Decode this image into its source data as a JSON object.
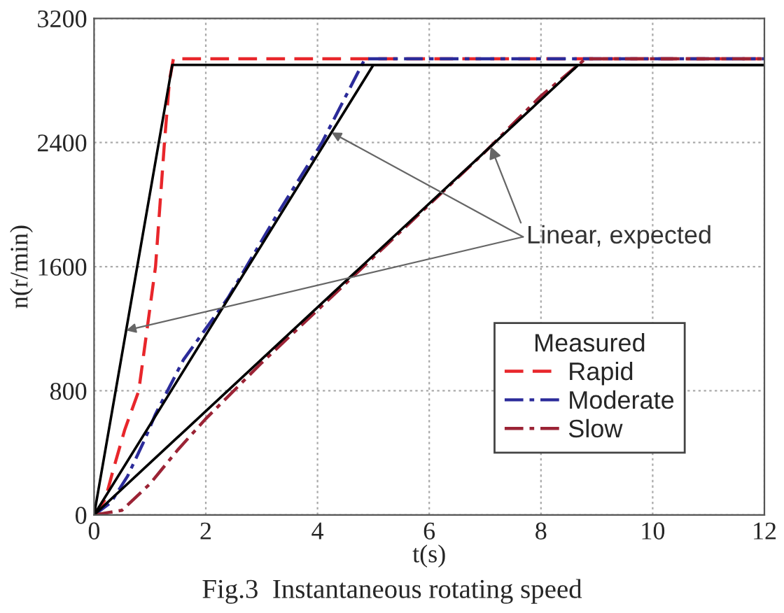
{
  "chart_data": {
    "type": "line",
    "xlabel": "t(s)",
    "ylabel": "n(r/min)",
    "legend_title": "Measured",
    "xlim": [
      0,
      12
    ],
    "ylim": [
      0,
      3200
    ],
    "xticks": [
      0,
      2,
      4,
      6,
      8,
      10,
      12
    ],
    "yticks": [
      0,
      800,
      1600,
      2400,
      3200
    ],
    "grid": true,
    "legend": "bottom right",
    "series": [
      {
        "name": "Rapid",
        "color": "#e8262b",
        "line_style": "dashed",
        "x": [
          0,
          0.2,
          0.35,
          0.55,
          0.8,
          0.95,
          1.1,
          1.26,
          1.35,
          1.42,
          12
        ],
        "values": [
          0,
          100,
          300,
          550,
          800,
          1200,
          1600,
          2400,
          2800,
          2940,
          2940
        ]
      },
      {
        "name": "Moderate",
        "color": "#2b2b9a",
        "line_style": "dashdot",
        "x": [
          0,
          0.3,
          0.6,
          0.9,
          1.1,
          1.6,
          2.4,
          3.3,
          4.08,
          4.85,
          12
        ],
        "values": [
          0,
          80,
          250,
          480,
          650,
          1000,
          1400,
          1950,
          2400,
          2940,
          2940
        ]
      },
      {
        "name": "Slow",
        "color": "#9b2335",
        "line_style": "dashdot",
        "x": [
          0,
          0.5,
          1,
          1.5,
          2,
          3,
          4,
          5,
          6,
          7,
          8,
          8.8,
          12
        ],
        "values": [
          0,
          30,
          200,
          420,
          620,
          980,
          1320,
          1660,
          2000,
          2340,
          2700,
          2940,
          2940
        ]
      },
      {
        "color": "#000000",
        "line_style": "solid",
        "x": [
          0,
          1.4,
          12
        ],
        "values": [
          0,
          2900,
          2900
        ]
      },
      {
        "color": "#000000",
        "line_style": "solid",
        "x": [
          0,
          5.0,
          12
        ],
        "values": [
          0,
          2900,
          2900
        ]
      },
      {
        "color": "#000000",
        "line_style": "solid",
        "x": [
          0,
          8.67,
          12
        ],
        "values": [
          0,
          2900,
          2900
        ]
      }
    ],
    "annotations": [
      {
        "text": "Linear, expected",
        "x": 7.1,
        "y": 2375
      },
      "Fig.3  Instantaneous rotating speed"
    ]
  }
}
